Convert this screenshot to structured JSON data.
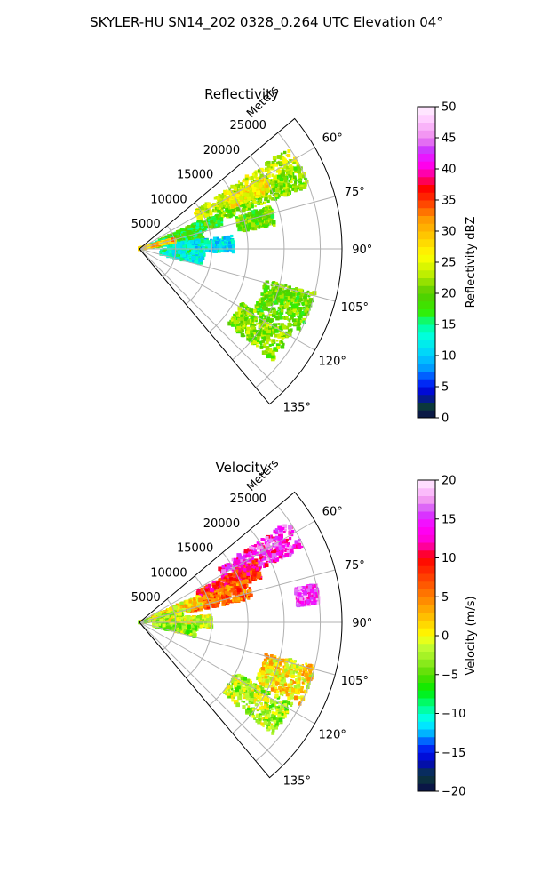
{
  "suptitle": "SKYLER-HU  SN14_202  0328_0.264 UTC Elevation 04°",
  "colors": {
    "grid": "#b0b0b0",
    "axis": "#000000"
  },
  "chart_data": [
    {
      "type": "heatmap",
      "projection": "polar-sector",
      "title": "Reflectivity",
      "radial_label": "Meters",
      "radial_ticks": [
        "5000",
        "10000",
        "15000",
        "20000",
        "25000"
      ],
      "radial_tick_values": [
        5000,
        10000,
        15000,
        20000,
        25000
      ],
      "rlim": [
        0,
        28000
      ],
      "angle_ticks": [
        "60°",
        "75°",
        "90°",
        "105°",
        "120°",
        "135°"
      ],
      "angle_tick_values": [
        60,
        75,
        90,
        105,
        120,
        135
      ],
      "theta_range_deg": [
        50,
        140
      ],
      "grid": true,
      "colorbar": {
        "label": "Reflectivity dBZ",
        "range": [
          0,
          50
        ],
        "ticks": [
          "0",
          "5",
          "10",
          "15",
          "20",
          "25",
          "30",
          "35",
          "40",
          "45",
          "50"
        ],
        "tick_values": [
          0,
          5,
          10,
          15,
          20,
          25,
          30,
          35,
          40,
          45,
          50
        ],
        "color_stops": [
          [
            0,
            "#0a0a4a"
          ],
          [
            2,
            "#0b3b3b"
          ],
          [
            4,
            "#0000cc"
          ],
          [
            6,
            "#0033ff"
          ],
          [
            8,
            "#0099ff"
          ],
          [
            10,
            "#00ccff"
          ],
          [
            13,
            "#00ffe0"
          ],
          [
            15,
            "#00ff99"
          ],
          [
            17,
            "#33ee00"
          ],
          [
            20,
            "#55cc00"
          ],
          [
            23,
            "#bbee00"
          ],
          [
            26,
            "#ffff00"
          ],
          [
            29,
            "#ffcc00"
          ],
          [
            32,
            "#ff9900"
          ],
          [
            35,
            "#ff3300"
          ],
          [
            37,
            "#ff0000"
          ],
          [
            39,
            "#ff0099"
          ],
          [
            41,
            "#ff00ff"
          ],
          [
            43,
            "#cc33ff"
          ],
          [
            45,
            "#ee88ee"
          ],
          [
            48,
            "#ffccff"
          ],
          [
            50,
            "#fff0ff"
          ]
        ]
      },
      "echo_regions": [
        {
          "theta": [
            56,
            64
          ],
          "r": [
            9000,
            25000
          ],
          "value": 24
        },
        {
          "theta": [
            62,
            70
          ],
          "r": [
            12000,
            25000
          ],
          "value": 21
        },
        {
          "theta": [
            66,
            74
          ],
          "r": [
            3000,
            12000
          ],
          "value": 18
        },
        {
          "theta": [
            70,
            82
          ],
          "r": [
            1500,
            9000
          ],
          "value": 17
        },
        {
          "theta": [
            72,
            80
          ],
          "r": [
            14000,
            19000
          ],
          "value": 20
        },
        {
          "theta": [
            82,
            92
          ],
          "r": [
            4000,
            13000
          ],
          "value": 12
        },
        {
          "theta": [
            92,
            104
          ],
          "r": [
            3000,
            9000
          ],
          "value": 13
        },
        {
          "theta": [
            104,
            117
          ],
          "r": [
            18000,
            25000
          ],
          "value": 20
        },
        {
          "theta": [
            118,
            130
          ],
          "r": [
            16000,
            24000
          ],
          "value": 21
        },
        {
          "theta": [
            74,
            78
          ],
          "r": [
            0,
            5000
          ],
          "value": 30
        },
        {
          "theta": [
            60,
            66
          ],
          "r": [
            14000,
            20000
          ],
          "value": 27
        }
      ]
    },
    {
      "type": "heatmap",
      "projection": "polar-sector",
      "title": "Velocity",
      "radial_label": "Meters",
      "radial_ticks": [
        "5000",
        "10000",
        "15000",
        "20000",
        "25000"
      ],
      "radial_tick_values": [
        5000,
        10000,
        15000,
        20000,
        25000
      ],
      "rlim": [
        0,
        28000
      ],
      "angle_ticks": [
        "60°",
        "75°",
        "90°",
        "105°",
        "120°",
        "135°"
      ],
      "angle_tick_values": [
        60,
        75,
        90,
        105,
        120,
        135
      ],
      "theta_range_deg": [
        50,
        140
      ],
      "grid": true,
      "colorbar": {
        "label": "Velocity (m/s)",
        "range": [
          -20,
          20
        ],
        "ticks": [
          "−20",
          "−15",
          "−10",
          "−5",
          "0",
          "5",
          "10",
          "15",
          "20"
        ],
        "tick_values": [
          -20,
          -15,
          -10,
          -5,
          0,
          5,
          10,
          15,
          20
        ],
        "color_stops": [
          [
            -20,
            "#0a0a4a"
          ],
          [
            -18,
            "#0b3b3b"
          ],
          [
            -16,
            "#0000cc"
          ],
          [
            -14,
            "#0033ff"
          ],
          [
            -13,
            "#0099ff"
          ],
          [
            -11,
            "#00ffff"
          ],
          [
            -9,
            "#00ff88"
          ],
          [
            -7,
            "#00ee00"
          ],
          [
            -5,
            "#55dd00"
          ],
          [
            -3,
            "#99ee22"
          ],
          [
            -1,
            "#ccff33"
          ],
          [
            0,
            "#ffff00"
          ],
          [
            2,
            "#ffcc00"
          ],
          [
            4,
            "#ff9900"
          ],
          [
            6,
            "#ff6600"
          ],
          [
            8,
            "#ff3300"
          ],
          [
            10,
            "#ff0000"
          ],
          [
            11,
            "#ff0066"
          ],
          [
            12,
            "#ff00cc"
          ],
          [
            14,
            "#ff00ff"
          ],
          [
            16,
            "#cc44ff"
          ],
          [
            17,
            "#ee88ee"
          ],
          [
            19,
            "#ffccff"
          ],
          [
            20,
            "#fff0ff"
          ]
        ]
      },
      "echo_regions": [
        {
          "theta": [
            56,
            66
          ],
          "r": [
            13000,
            25000
          ],
          "value": 14
        },
        {
          "theta": [
            62,
            70
          ],
          "r": [
            9000,
            18000
          ],
          "value": 9
        },
        {
          "theta": [
            68,
            78
          ],
          "r": [
            7000,
            16000
          ],
          "value": 6
        },
        {
          "theta": [
            66,
            76
          ],
          "r": [
            2000,
            9000
          ],
          "value": 1
        },
        {
          "theta": [
            74,
            84
          ],
          "r": [
            0,
            6000
          ],
          "value": -2
        },
        {
          "theta": [
            84,
            94
          ],
          "r": [
            2000,
            10000
          ],
          "value": -1
        },
        {
          "theta": [
            94,
            104
          ],
          "r": [
            2000,
            8000
          ],
          "value": -3
        },
        {
          "theta": [
            104,
            117
          ],
          "r": [
            18000,
            25000
          ],
          "value": 1
        },
        {
          "theta": [
            118,
            130
          ],
          "r": [
            15000,
            24000
          ],
          "value": -2
        },
        {
          "theta": [
            78,
            84
          ],
          "r": [
            22000,
            25000
          ],
          "value": 15
        }
      ]
    }
  ]
}
